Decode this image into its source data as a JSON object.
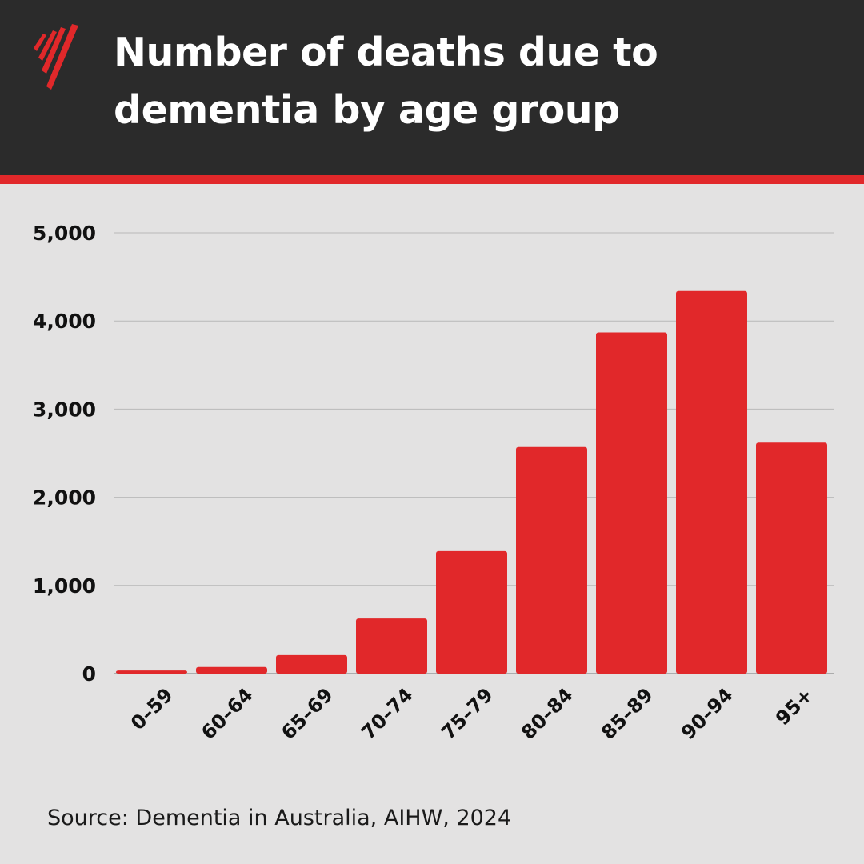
{
  "header": {
    "title": "Number of deaths due to dementia by age group",
    "logo": "sbs-logo",
    "background_color": "#2b2b2b",
    "accent_color": "#e1282a"
  },
  "chart_data": {
    "type": "bar",
    "title": "Number of deaths due to dementia by age group",
    "xlabel": "",
    "ylabel": "",
    "categories": [
      "0–59",
      "60–64",
      "65–69",
      "70–74",
      "75–79",
      "80–84",
      "85–89",
      "90–94",
      "95+"
    ],
    "values": [
      35,
      75,
      210,
      625,
      1390,
      2570,
      3870,
      4340,
      2620
    ],
    "ylim": [
      0,
      5000
    ],
    "yticks": [
      0,
      1000,
      2000,
      3000,
      4000,
      5000
    ],
    "ytick_labels": [
      "0",
      "1,000",
      "2,000",
      "3,000",
      "4,000",
      "5,000"
    ],
    "bar_color": "#e1282a",
    "grid": true,
    "legend": "none"
  },
  "footer": {
    "source": "Source: Dementia in Australia, AIHW, 2024"
  }
}
